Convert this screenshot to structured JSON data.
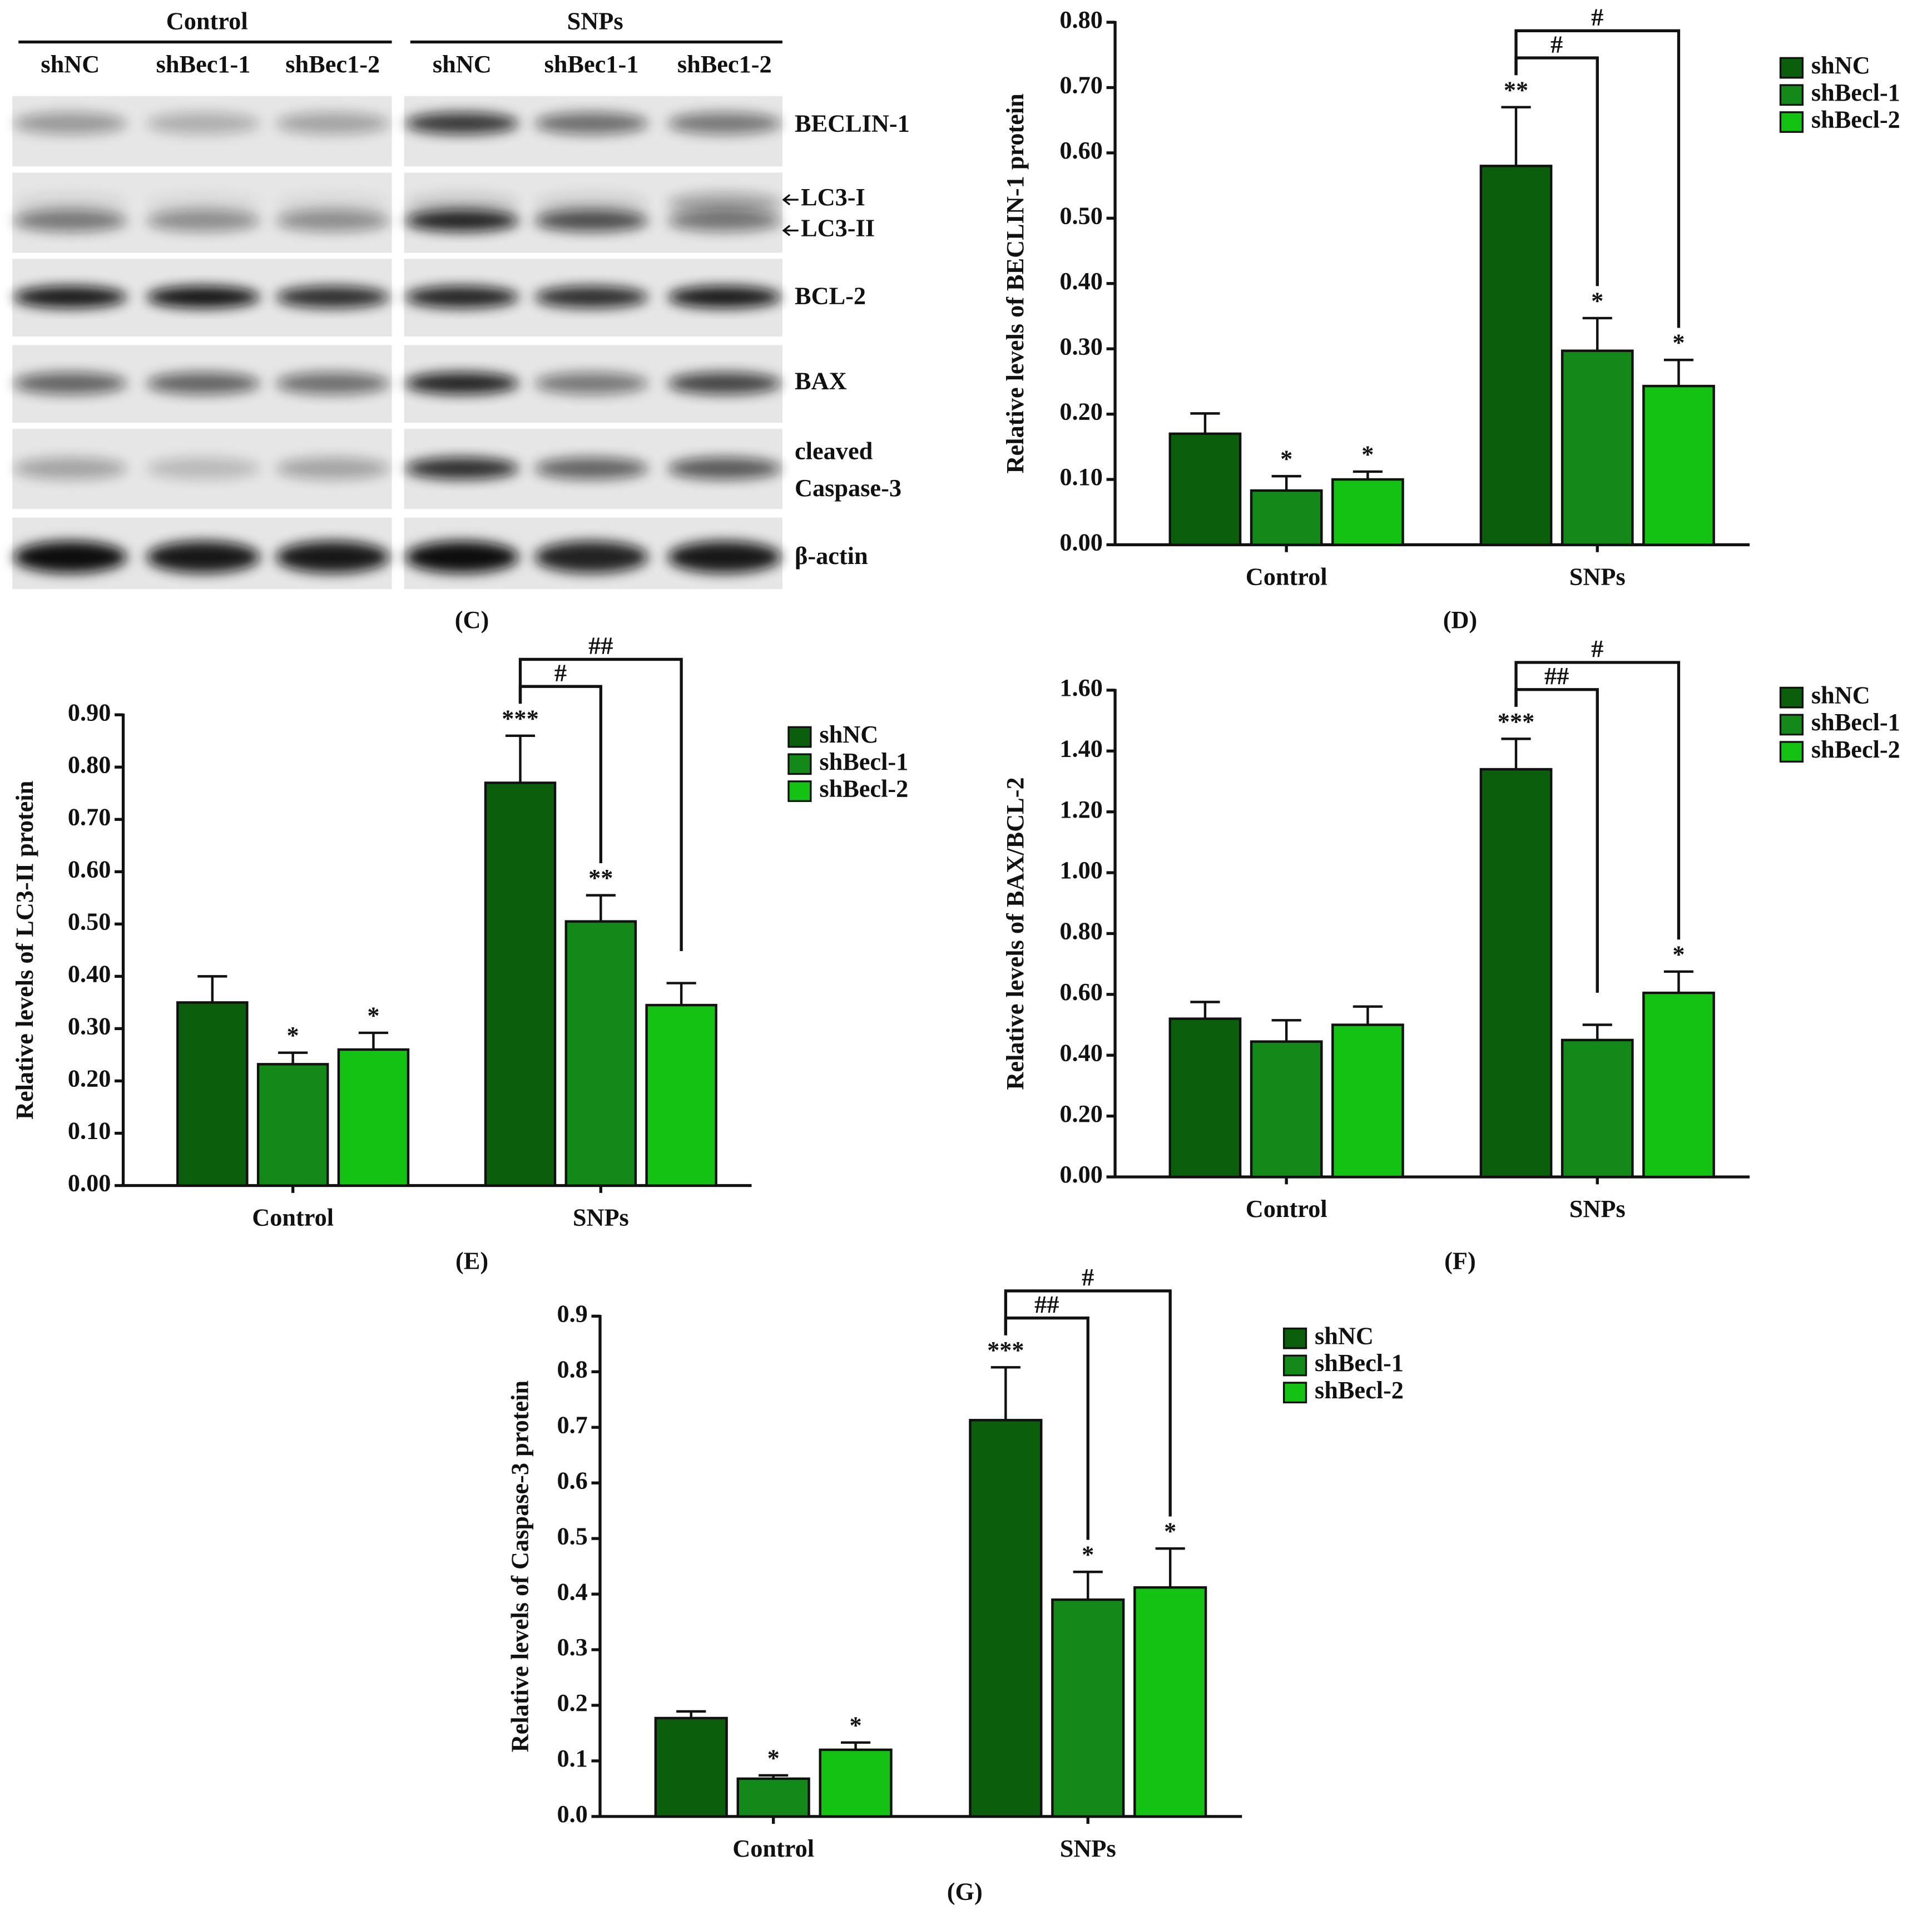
{
  "blot": {
    "panel_label": "(C)",
    "groups": [
      "Control",
      "SNPs"
    ],
    "lanes": [
      "shNC",
      "shBec1-1",
      "shBec1-2",
      "shNC",
      "shBec1-1",
      "shBec1-2"
    ],
    "rows": [
      "BECLIN-1",
      "LC3-I",
      "LC3-II",
      "BCL-2",
      "BAX",
      "cleaved",
      "Caspase-3",
      "β-actin"
    ]
  },
  "chart_data": [
    {
      "type": "bar",
      "panel_label": "(D)",
      "ylabel": "Relative levels of BECLIN-1 protein",
      "categories": [
        "Control",
        "SNPs"
      ],
      "series": [
        {
          "name": "shNC",
          "color": "#0b5e0b",
          "values": [
            0.17,
            0.58
          ],
          "errors": [
            0.031,
            0.09
          ],
          "stars": [
            null,
            "**"
          ],
          "bracket_labels": [
            null,
            null
          ]
        },
        {
          "name": "shBecl-1",
          "color": "#13891a",
          "values": [
            0.083,
            0.297
          ],
          "errors": [
            0.022,
            0.05
          ],
          "stars": [
            "*",
            "*"
          ],
          "bracket_labels": [
            null,
            "#"
          ]
        },
        {
          "name": "shBecl-2",
          "color": "#14c214",
          "values": [
            0.1,
            0.243
          ],
          "errors": [
            0.012,
            0.04
          ],
          "stars": [
            "*",
            "*"
          ],
          "bracket_labels": [
            null,
            "#"
          ]
        }
      ],
      "ylim": [
        0,
        0.8
      ],
      "yticks": [
        {
          "value": 0,
          "label": "0.00"
        },
        {
          "value": 0.1,
          "label": "0.10"
        },
        {
          "value": 0.2,
          "label": "0.20"
        },
        {
          "value": 0.3,
          "label": "0.30"
        },
        {
          "value": 0.4,
          "label": "0.40"
        },
        {
          "value": 0.5,
          "label": "0.50"
        },
        {
          "value": 0.6,
          "label": "0.60"
        },
        {
          "value": 0.7,
          "label": "0.70"
        },
        {
          "value": 0.8,
          "label": "0.80"
        }
      ]
    },
    {
      "type": "bar",
      "panel_label": "(E)",
      "ylabel": "Relative levels of LC3-II protein",
      "categories": [
        "Control",
        "SNPs"
      ],
      "series": [
        {
          "name": "shNC",
          "color": "#0b5e0b",
          "values": [
            0.35,
            0.77
          ],
          "errors": [
            0.05,
            0.09
          ],
          "stars": [
            null,
            "***"
          ],
          "bracket_labels": [
            null,
            null
          ]
        },
        {
          "name": "shBecl-1",
          "color": "#13891a",
          "values": [
            0.232,
            0.505
          ],
          "errors": [
            0.022,
            0.05
          ],
          "stars": [
            "*",
            "**"
          ],
          "bracket_labels": [
            null,
            "#"
          ]
        },
        {
          "name": "shBecl-2",
          "color": "#14c214",
          "values": [
            0.26,
            0.345
          ],
          "errors": [
            0.032,
            0.042
          ],
          "stars": [
            "*",
            null
          ],
          "bracket_labels": [
            null,
            "##"
          ]
        }
      ],
      "ylim": [
        0,
        0.9
      ],
      "yticks": [
        {
          "value": 0,
          "label": "0.00"
        },
        {
          "value": 0.1,
          "label": "0.10"
        },
        {
          "value": 0.2,
          "label": "0.20"
        },
        {
          "value": 0.3,
          "label": "0.30"
        },
        {
          "value": 0.4,
          "label": "0.40"
        },
        {
          "value": 0.5,
          "label": "0.50"
        },
        {
          "value": 0.6,
          "label": "0.60"
        },
        {
          "value": 0.7,
          "label": "0.70"
        },
        {
          "value": 0.8,
          "label": "0.80"
        },
        {
          "value": 0.9,
          "label": "0.90"
        }
      ]
    },
    {
      "type": "bar",
      "panel_label": "(F)",
      "ylabel": "Relative levels of BAX/BCL-2",
      "categories": [
        "Control",
        "SNPs"
      ],
      "series": [
        {
          "name": "shNC",
          "color": "#0b5e0b",
          "values": [
            0.52,
            1.34
          ],
          "errors": [
            0.055,
            0.1
          ],
          "stars": [
            null,
            "***"
          ],
          "bracket_labels": [
            null,
            null
          ]
        },
        {
          "name": "shBecl-1",
          "color": "#13891a",
          "values": [
            0.445,
            0.45
          ],
          "errors": [
            0.07,
            0.05
          ],
          "stars": [
            null,
            null
          ],
          "bracket_labels": [
            null,
            "##"
          ]
        },
        {
          "name": "shBecl-2",
          "color": "#14c214",
          "values": [
            0.5,
            0.605
          ],
          "errors": [
            0.06,
            0.07
          ],
          "stars": [
            null,
            "*"
          ],
          "bracket_labels": [
            null,
            "#"
          ]
        }
      ],
      "ylim": [
        0,
        1.6
      ],
      "yticks": [
        {
          "value": 0,
          "label": "0.00"
        },
        {
          "value": 0.2,
          "label": "0.20"
        },
        {
          "value": 0.4,
          "label": "0.40"
        },
        {
          "value": 0.6,
          "label": "0.60"
        },
        {
          "value": 0.8,
          "label": "0.80"
        },
        {
          "value": 1,
          "label": "1.00"
        },
        {
          "value": 1.2,
          "label": "1.20"
        },
        {
          "value": 1.4,
          "label": "1.40"
        },
        {
          "value": 1.6,
          "label": "1.60"
        }
      ]
    },
    {
      "type": "bar",
      "panel_label": "(G)",
      "ylabel": "Relative levels of Caspase-3 protein",
      "categories": [
        "Control",
        "SNPs"
      ],
      "series": [
        {
          "name": "shNC",
          "color": "#0b5e0b",
          "values": [
            0.177,
            0.713
          ],
          "errors": [
            0.012,
            0.095
          ],
          "stars": [
            null,
            "***"
          ],
          "bracket_labels": [
            null,
            null
          ]
        },
        {
          "name": "shBecl-1",
          "color": "#13891a",
          "values": [
            0.068,
            0.39
          ],
          "errors": [
            0.006,
            0.05
          ],
          "stars": [
            "*",
            "*"
          ],
          "bracket_labels": [
            null,
            "##"
          ]
        },
        {
          "name": "shBecl-2",
          "color": "#14c214",
          "values": [
            0.12,
            0.412
          ],
          "errors": [
            0.013,
            0.07
          ],
          "stars": [
            "*",
            "*"
          ],
          "bracket_labels": [
            null,
            "#"
          ]
        }
      ],
      "ylim": [
        0,
        0.9
      ],
      "yticks": [
        {
          "value": 0,
          "label": "0.0"
        },
        {
          "value": 0.1,
          "label": "0.1"
        },
        {
          "value": 0.2,
          "label": "0.2"
        },
        {
          "value": 0.3,
          "label": "0.3"
        },
        {
          "value": 0.4,
          "label": "0.4"
        },
        {
          "value": 0.5,
          "label": "0.5"
        },
        {
          "value": 0.6,
          "label": "0.6"
        },
        {
          "value": 0.7,
          "label": "0.7"
        },
        {
          "value": 0.8,
          "label": "0.8"
        },
        {
          "value": 0.9,
          "label": "0.9"
        }
      ]
    }
  ]
}
